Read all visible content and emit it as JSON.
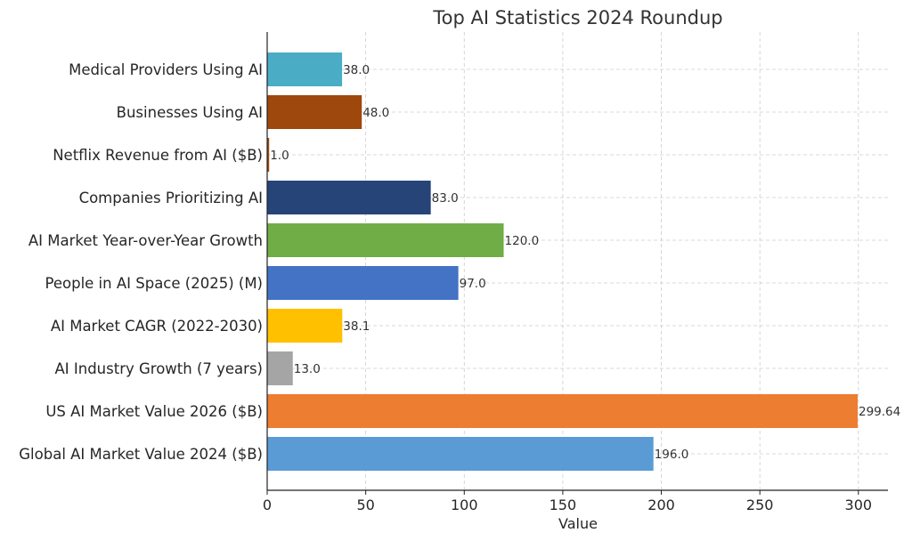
{
  "chart_data": {
    "type": "bar",
    "orientation": "horizontal",
    "title": "Top AI Statistics 2024 Roundup",
    "xlabel": "Value",
    "ylabel": "",
    "xlim": [
      0,
      315
    ],
    "xticks": [
      0,
      50,
      100,
      150,
      200,
      250,
      300
    ],
    "grid": true,
    "categories": [
      "Global AI Market Value 2024 ($B)",
      "US AI Market Value 2026 ($B)",
      "AI Industry Growth (7 years)",
      "AI Market CAGR (2022-2030)",
      "People in AI Space (2025) (M)",
      "AI Market Year-over-Year Growth",
      "Companies Prioritizing AI",
      "Netflix Revenue from AI ($B)",
      "Businesses Using AI",
      "Medical Providers Using AI"
    ],
    "values": [
      196.0,
      299.64,
      13.0,
      38.1,
      97.0,
      120.0,
      83.0,
      1.0,
      48.0,
      38.0
    ],
    "value_labels": [
      "196.0",
      "299.64",
      "13.0",
      "38.1",
      "97.0",
      "120.0",
      "83.0",
      "1.0",
      "48.0",
      "38.0"
    ],
    "colors": [
      "#5b9bd5",
      "#ed7d31",
      "#a5a5a5",
      "#ffc000",
      "#4472c4",
      "#70ad47",
      "#264478",
      "#9e480e",
      "#9e480e",
      "#4bacc6"
    ]
  }
}
